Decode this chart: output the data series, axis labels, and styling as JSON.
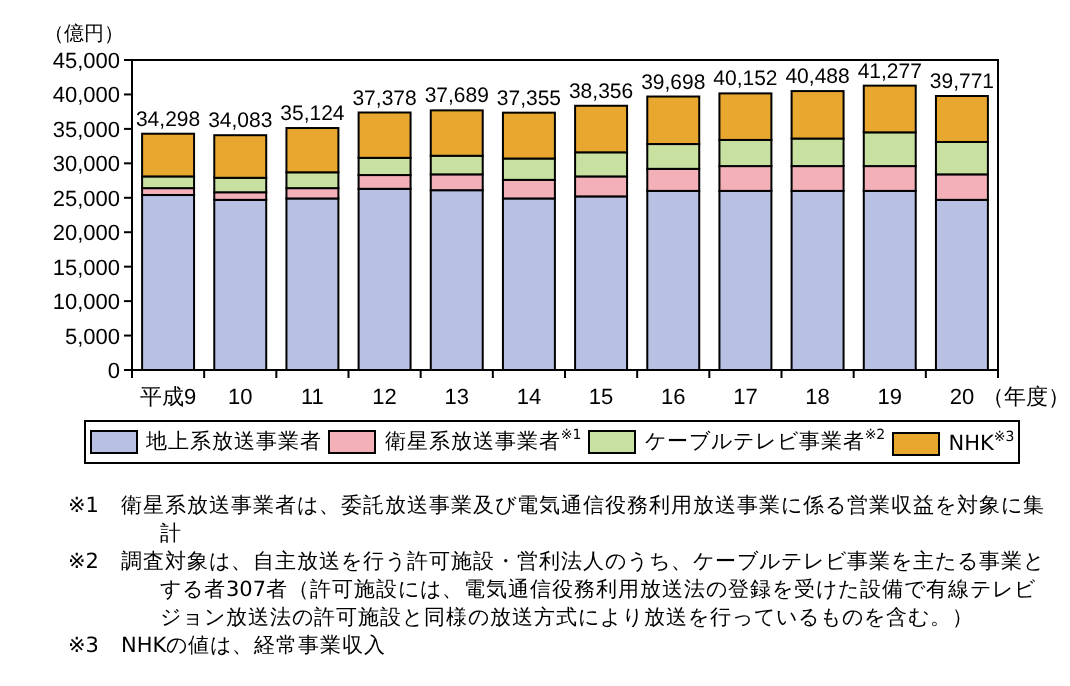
{
  "chart_data": {
    "type": "bar",
    "stacked": true,
    "ylabel": "（億円）",
    "xlabel": "（年度）",
    "categories": [
      "平成9",
      "10",
      "11",
      "12",
      "13",
      "14",
      "15",
      "16",
      "17",
      "18",
      "19",
      "20"
    ],
    "series": [
      {
        "name": "地上系放送事業者",
        "color": "#b8c0e4",
        "values": [
          25400,
          24700,
          24900,
          26300,
          26100,
          24900,
          25200,
          26000,
          26000,
          26000,
          26000,
          24700
        ]
      },
      {
        "name": "衛星系放送事業者$^{※1}$",
        "color": "#f4b0b8",
        "values": [
          1000,
          1100,
          1500,
          2000,
          2300,
          2700,
          2900,
          3200,
          3600,
          3600,
          3600,
          3700
        ]
      },
      {
        "name": "ケーブルテレビ事業者$^{※2}$",
        "color": "#c8e0a0",
        "values": [
          1700,
          2100,
          2300,
          2500,
          2700,
          3100,
          3500,
          3600,
          3800,
          4000,
          4900,
          4700
        ]
      },
      {
        "name": "NHK$^{※3}$",
        "color": "#e8a830",
        "values": [
          6198,
          6183,
          6424,
          6578,
          6589,
          6655,
          6756,
          6898,
          6752,
          6888,
          6777,
          6671
        ]
      }
    ],
    "totals": [
      "34,298",
      "34,083",
      "35,124",
      "37,378",
      "37,689",
      "37,355",
      "38,356",
      "39,698",
      "40,152",
      "40,488",
      "41,277",
      "39,771"
    ],
    "ylim": [
      0,
      45000
    ],
    "yticks": [
      {
        "value": 0,
        "label": "0"
      },
      {
        "value": 5000,
        "label": "5,000"
      },
      {
        "value": 10000,
        "label": "10,000"
      },
      {
        "value": 15000,
        "label": "15,000"
      },
      {
        "value": 20000,
        "label": "20,000"
      },
      {
        "value": 25000,
        "label": "25,000"
      },
      {
        "value": 30000,
        "label": "30,000"
      },
      {
        "value": 35000,
        "label": "35,000"
      },
      {
        "value": 40000,
        "label": "40,000"
      },
      {
        "value": 45000,
        "label": "45,000"
      }
    ],
    "grid": false,
    "legend": "bottom",
    "annotations": [
      "※1　衛星系放送事業者は、委託放送事業及び電気通信役務利用放送事業に係る営業収益を対象に集計",
      "※2　調査対象は、自主放送を行う許可施設・営利法人のうち、ケーブルテレビ事業を主たる事業とする者307者（許可施設には、電気通信役務利用放送法の登録を受けた設備で有線テレビジョン放送法の許可施設と同様の放送方式により放送を行っているものを含む。）",
      "※3　NHKの値は、経常事業収入"
    ]
  }
}
